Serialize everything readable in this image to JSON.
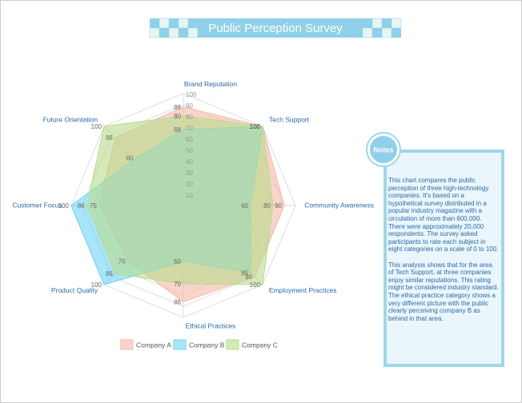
{
  "chart_data": {
    "type": "radar",
    "title": "Public Perception Survey",
    "categories": [
      "Brand Reputation",
      "Tech Support",
      "Community Awareness",
      "Employment Practices",
      "Ethical Practices",
      "Product Quality",
      "Customer Focus",
      "Future Orientation"
    ],
    "series": [
      {
        "name": "Company A",
        "color": "#f5b8a8",
        "values": [
          88,
          100,
          90,
          90,
          86,
          70,
          75,
          86
        ]
      },
      {
        "name": "Company B",
        "color": "#6fd3f5",
        "values": [
          68,
          100,
          60,
          85,
          50,
          100,
          100,
          60
        ]
      },
      {
        "name": "Company C",
        "color": "#b9dc8c",
        "values": [
          80,
          100,
          80,
          100,
          70,
          86,
          86,
          100
        ]
      }
    ],
    "rlim": [
      0,
      100
    ],
    "rticks": [
      10,
      20,
      30,
      40,
      50,
      60,
      70,
      80,
      90,
      100
    ],
    "grid": true
  },
  "notes": {
    "title": "Notes",
    "paragraphs": [
      "This chart compares the public perception of three high-technology companies. It's based on a hypothetical survey distributed in a popular industry magazine with a circulation of more than 600,000. There were approximately 20,000 respondents. The survey asked participants to rate each subject in eight categories on a scale of 0 to 100.",
      "This analysis shows that for the area of Tech Support, at three companies enjoy similar reputations. This rating might be considered industry standard. The ethical practice category shows a very different picture with the public clearly perceiving company B as behind in that area."
    ]
  }
}
